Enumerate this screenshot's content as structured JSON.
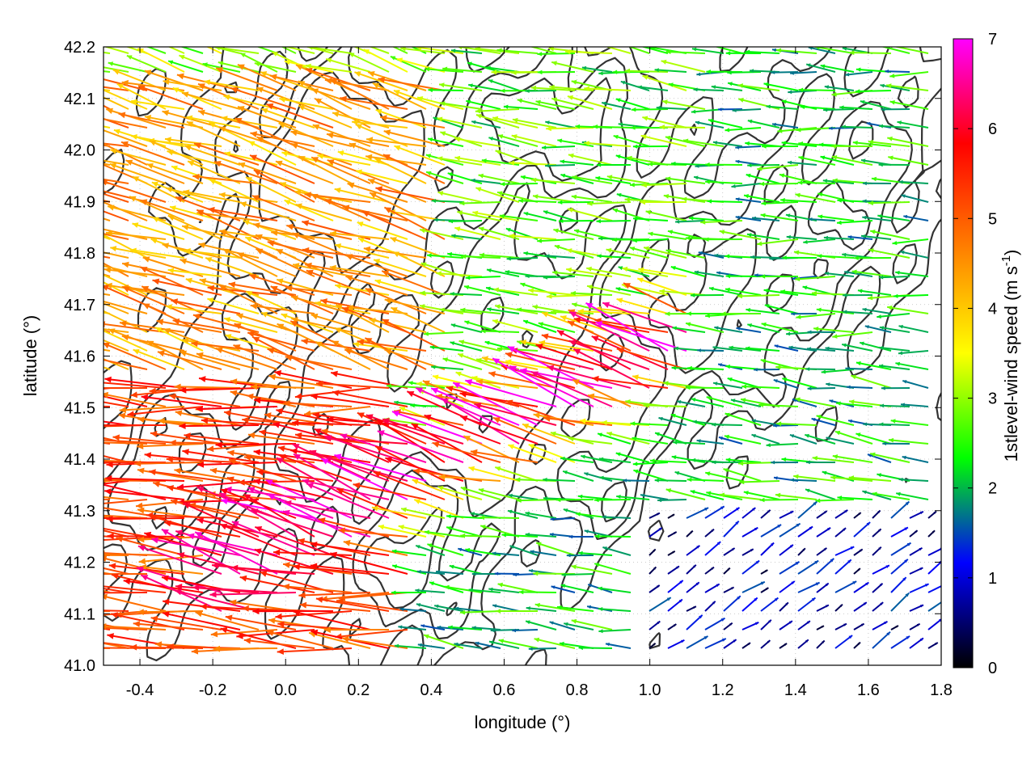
{
  "chart_data": {
    "type": "vector_field",
    "xlabel": "longitude (°)",
    "ylabel": "latitude (°)",
    "xlim": [
      -0.5,
      1.8
    ],
    "ylim": [
      41.0,
      42.2
    ],
    "xticks": [
      "-0.4",
      "-0.2",
      "0.0",
      "0.2",
      "0.4",
      "0.6",
      "0.8",
      "1.0",
      "1.2",
      "1.4",
      "1.6",
      "1.8"
    ],
    "yticks": [
      "41.0",
      "41.1",
      "41.2",
      "41.3",
      "41.4",
      "41.5",
      "41.6",
      "41.7",
      "41.8",
      "41.9",
      "42.0",
      "42.1",
      "42.2"
    ],
    "grid": true,
    "colorbar": {
      "label": "1stlevel-wind speed (m s",
      "label_superscript": "-1",
      "label_close": ")",
      "range": [
        0,
        7
      ],
      "ticks": [
        "0",
        "1",
        "2",
        "3",
        "4",
        "5",
        "6",
        "7"
      ],
      "palette": [
        "#000000",
        "#0000ff",
        "#00ff00",
        "#ffff00",
        "#ff8000",
        "#ff0000",
        "#ff00ff"
      ]
    },
    "contour_color": "#333333",
    "wind_regimes": [
      {
        "region": "north-west",
        "speed_ms": 4.5,
        "direction": "from east-south-east"
      },
      {
        "region": "west-central",
        "speed_ms": 5.5,
        "direction": "from east"
      },
      {
        "region": "central band",
        "speed_ms": 6.5,
        "direction": "from south-east"
      },
      {
        "region": "north-central",
        "speed_ms": 2.5,
        "direction": "from east"
      },
      {
        "region": "east",
        "speed_ms": 2.0,
        "direction": "from east"
      },
      {
        "region": "south-east",
        "speed_ms": 0.8,
        "direction": "from south-west"
      }
    ]
  }
}
